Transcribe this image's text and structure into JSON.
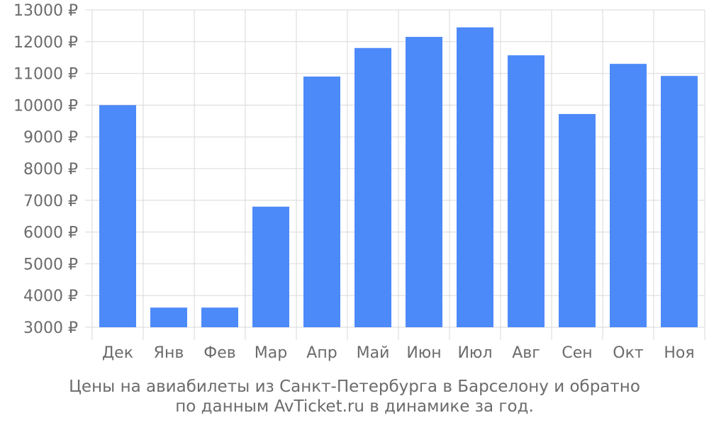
{
  "chart_data": {
    "type": "bar",
    "categories": [
      "Дек",
      "Янв",
      "Фев",
      "Мар",
      "Апр",
      "Май",
      "Июн",
      "Июл",
      "Авг",
      "Сен",
      "Окт",
      "Ноя"
    ],
    "values": [
      10000,
      3620,
      3620,
      6800,
      10900,
      11800,
      12150,
      12450,
      11570,
      9720,
      11300,
      10920
    ],
    "ylim": [
      3000,
      13000
    ],
    "yticks": [
      "3000 ₽",
      "4000 ₽",
      "5000 ₽",
      "6000 ₽",
      "7000 ₽",
      "8000 ₽",
      "9000 ₽",
      "10000 ₽",
      "11000 ₽",
      "12000 ₽",
      "13000 ₽"
    ],
    "bar_color": "#4d8af9",
    "grid": true,
    "caption_line1": "Цены на авиабилеты из Санкт-Петербурга в Барселону и обратно",
    "caption_line2": "по данным AvTicket.ru в динамике за год."
  }
}
